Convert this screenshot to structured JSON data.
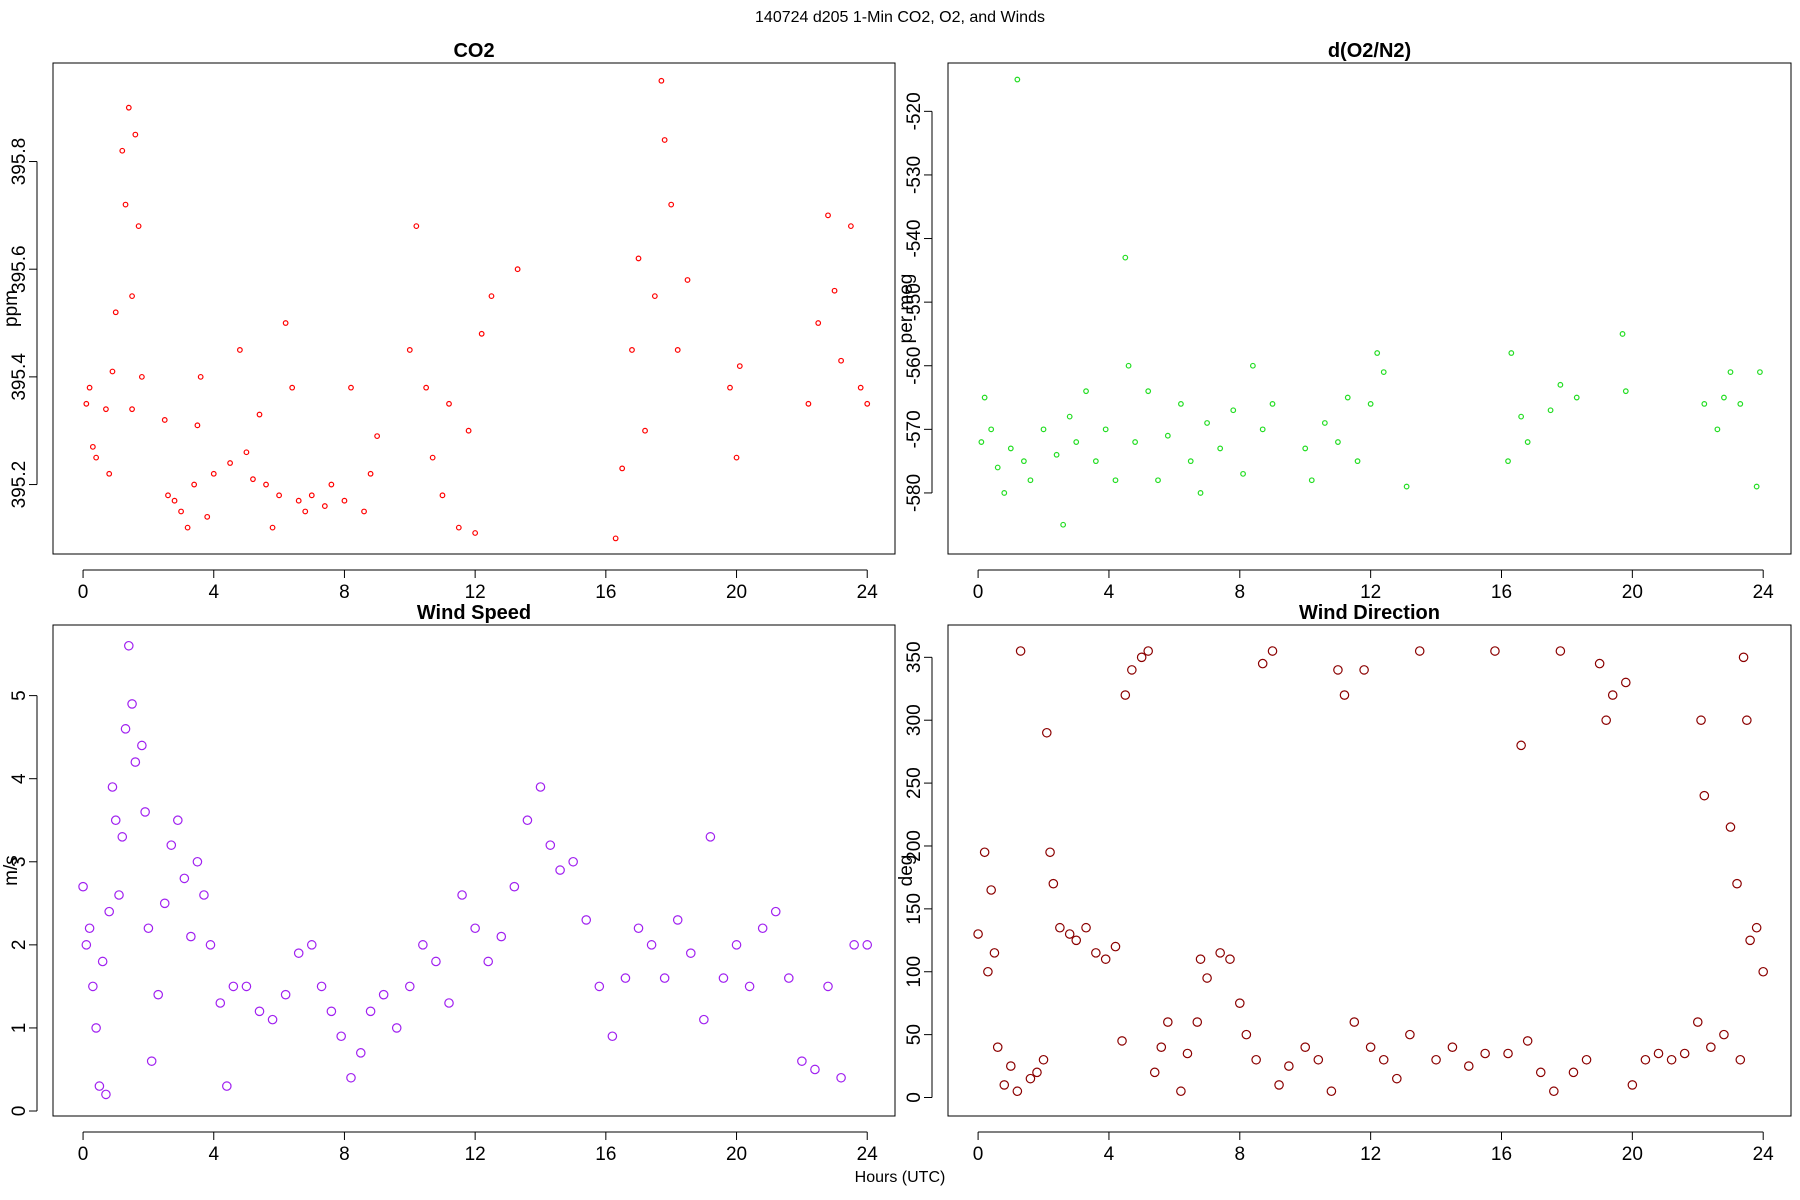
{
  "title": "140724   d205   1-Min CO2, O2, and Winds",
  "xlabel": "Hours (UTC)",
  "chart_data": [
    {
      "type": "scatter",
      "title": "CO2",
      "ylabel": "ppm",
      "color": "#ff0000",
      "x": [
        0.1,
        0.2,
        0.3,
        0.4,
        0.7,
        0.8,
        0.9,
        1.0,
        1.2,
        1.3,
        1.4,
        1.5,
        1.6,
        1.7,
        1.8,
        1.5,
        2.5,
        2.6,
        2.8,
        3.0,
        3.2,
        3.4,
        3.5,
        3.6,
        3.8,
        4.0,
        4.5,
        4.8,
        5.0,
        5.2,
        5.4,
        5.6,
        5.8,
        6.0,
        6.2,
        6.4,
        6.6,
        6.8,
        7.0,
        7.4,
        7.6,
        8.0,
        8.2,
        8.6,
        8.8,
        9.0,
        10.0,
        10.2,
        10.5,
        10.7,
        11.0,
        11.2,
        11.5,
        11.8,
        12.0,
        12.2,
        12.5,
        13.3,
        16.3,
        16.5,
        16.8,
        17.0,
        17.2,
        17.5,
        17.7,
        17.8,
        18.0,
        18.2,
        18.5,
        19.8,
        20.0,
        20.1,
        22.2,
        22.5,
        22.8,
        23.0,
        23.2,
        23.5,
        23.8,
        24.0
      ],
      "values": [
        395.35,
        395.38,
        395.27,
        395.25,
        395.34,
        395.22,
        395.41,
        395.52,
        395.82,
        395.72,
        395.9,
        395.55,
        395.85,
        395.68,
        395.4,
        395.34,
        395.32,
        395.18,
        395.17,
        395.15,
        395.12,
        395.2,
        395.31,
        395.4,
        395.14,
        395.22,
        395.24,
        395.45,
        395.26,
        395.21,
        395.33,
        395.2,
        395.12,
        395.18,
        395.5,
        395.38,
        395.17,
        395.15,
        395.18,
        395.16,
        395.2,
        395.17,
        395.38,
        395.15,
        395.22,
        395.29,
        395.45,
        395.68,
        395.38,
        395.25,
        395.18,
        395.35,
        395.12,
        395.3,
        395.11,
        395.48,
        395.55,
        395.6,
        395.1,
        395.23,
        395.45,
        395.62,
        395.3,
        395.55,
        395.95,
        395.84,
        395.72,
        395.45,
        395.58,
        395.38,
        395.25,
        395.42,
        395.35,
        395.5,
        395.7,
        395.56,
        395.43,
        395.68,
        395.38,
        395.35
      ],
      "xlim": [
        -0.92,
        24.85
      ],
      "ylim": [
        395.071,
        395.983
      ],
      "xticks": [
        0,
        4,
        8,
        12,
        16,
        20,
        24
      ],
      "yticks": [
        395.2,
        395.4,
        395.6,
        395.8
      ]
    },
    {
      "type": "scatter",
      "title": "d(O2/N2)",
      "ylabel": "per meg",
      "color": "#22dd22",
      "x": [
        0.1,
        0.2,
        0.4,
        0.6,
        0.8,
        1.0,
        1.2,
        1.4,
        1.6,
        2.0,
        2.4,
        2.6,
        2.8,
        3.0,
        3.3,
        3.6,
        3.9,
        4.2,
        4.5,
        4.6,
        4.8,
        5.2,
        5.5,
        5.8,
        6.2,
        6.5,
        6.8,
        7.0,
        7.4,
        7.8,
        8.1,
        8.4,
        8.7,
        9.0,
        10.0,
        10.2,
        10.6,
        11.0,
        11.3,
        11.6,
        12.0,
        12.2,
        12.4,
        13.1,
        16.2,
        16.3,
        16.6,
        16.8,
        17.5,
        17.8,
        18.3,
        19.7,
        19.8,
        22.2,
        22.6,
        22.8,
        23.0,
        23.3,
        23.8,
        23.9
      ],
      "values": [
        -572,
        -565,
        -570,
        -576,
        -580,
        -573,
        -515,
        -575,
        -578,
        -570,
        -574,
        -585,
        -568,
        -572,
        -564,
        -575,
        -570,
        -578,
        -543,
        -560,
        -572,
        -564,
        -578,
        -571,
        -566,
        -575,
        -580,
        -569,
        -573,
        -567,
        -577,
        -560,
        -570,
        -566,
        -573,
        -578,
        -569,
        -572,
        -565,
        -575,
        -566,
        -558,
        -561,
        -579,
        -575,
        -558,
        -568,
        -572,
        -567,
        -563,
        -565,
        -555,
        -564,
        -566,
        -570,
        -565,
        -561,
        -566,
        -579,
        -561
      ],
      "xlim": [
        -0.92,
        24.85
      ],
      "ylim": [
        -589.6,
        -512.4
      ],
      "xticks": [
        0,
        4,
        8,
        12,
        16,
        20,
        24
      ],
      "yticks": [
        -580,
        -570,
        -560,
        -550,
        -540,
        -530,
        -520
      ]
    },
    {
      "type": "scatter",
      "title": "Wind Speed",
      "ylabel": "m/s",
      "color": "#a020f0",
      "x": [
        0.0,
        0.1,
        0.2,
        0.3,
        0.4,
        0.5,
        0.6,
        0.7,
        0.8,
        0.9,
        1.0,
        1.1,
        1.2,
        1.3,
        1.4,
        1.5,
        1.6,
        1.8,
        1.9,
        2.0,
        2.1,
        2.3,
        2.5,
        2.7,
        2.9,
        3.1,
        3.3,
        3.5,
        3.7,
        3.9,
        4.2,
        4.4,
        4.6,
        5.0,
        5.4,
        5.8,
        6.2,
        6.6,
        7.0,
        7.3,
        7.6,
        7.9,
        8.2,
        8.5,
        8.8,
        9.2,
        9.6,
        10.0,
        10.4,
        10.8,
        11.2,
        11.6,
        12.0,
        12.4,
        12.8,
        13.2,
        13.6,
        14.0,
        14.3,
        14.6,
        15.0,
        15.4,
        15.8,
        16.2,
        16.6,
        17.0,
        17.4,
        17.8,
        18.2,
        18.6,
        19.0,
        19.2,
        19.6,
        20.0,
        20.4,
        20.8,
        21.2,
        21.6,
        22.0,
        22.4,
        22.8,
        23.2,
        23.6,
        24.0
      ],
      "values": [
        2.7,
        2.0,
        2.2,
        1.5,
        1.0,
        0.3,
        1.8,
        0.2,
        2.4,
        3.9,
        3.5,
        2.6,
        3.3,
        4.6,
        5.6,
        4.9,
        4.2,
        4.4,
        3.6,
        2.2,
        0.6,
        1.4,
        2.5,
        3.2,
        3.5,
        2.8,
        2.1,
        3.0,
        2.6,
        2.0,
        1.3,
        0.3,
        1.5,
        1.5,
        1.2,
        1.1,
        1.4,
        1.9,
        2.0,
        1.5,
        1.2,
        0.9,
        0.4,
        0.7,
        1.2,
        1.4,
        1.0,
        1.5,
        2.0,
        1.8,
        1.3,
        2.6,
        2.2,
        1.8,
        2.1,
        2.7,
        3.5,
        3.9,
        3.2,
        2.9,
        3.0,
        2.3,
        1.5,
        0.9,
        1.6,
        2.2,
        2.0,
        1.6,
        2.3,
        1.9,
        1.1,
        3.3,
        1.6,
        2.0,
        1.5,
        2.2,
        2.4,
        1.6,
        0.6,
        0.5,
        1.5,
        0.4,
        2.0,
        2.0
      ],
      "xlim": [
        -0.92,
        24.85
      ],
      "ylim": [
        -0.06,
        5.85
      ],
      "xticks": [
        0,
        4,
        8,
        12,
        16,
        20,
        24
      ],
      "yticks": [
        0,
        1,
        2,
        3,
        4,
        5
      ]
    },
    {
      "type": "scatter",
      "title": "Wind Direction",
      "ylabel": "deg",
      "color": "#8b0000",
      "x": [
        0.0,
        0.2,
        0.3,
        0.4,
        0.5,
        0.6,
        0.8,
        1.0,
        1.2,
        1.3,
        1.6,
        1.8,
        2.0,
        2.1,
        2.2,
        2.3,
        2.5,
        2.8,
        3.0,
        3.3,
        3.6,
        3.9,
        4.2,
        4.4,
        4.5,
        4.7,
        5.0,
        5.2,
        5.4,
        5.6,
        5.8,
        6.2,
        6.4,
        6.7,
        6.8,
        7.0,
        7.4,
        7.7,
        8.0,
        8.2,
        8.5,
        8.7,
        9.0,
        9.2,
        9.5,
        10.0,
        10.4,
        10.8,
        11.0,
        11.2,
        11.5,
        11.8,
        12.0,
        12.4,
        12.8,
        13.2,
        13.5,
        14.0,
        14.5,
        15.0,
        15.5,
        15.8,
        16.2,
        16.6,
        16.8,
        17.2,
        17.6,
        17.8,
        18.2,
        18.6,
        19.0,
        19.2,
        19.4,
        19.8,
        20.0,
        20.4,
        20.8,
        21.2,
        21.6,
        22.0,
        22.1,
        22.2,
        22.4,
        22.8,
        23.0,
        23.2,
        23.3,
        23.4,
        23.5,
        23.6,
        23.8,
        24.0
      ],
      "values": [
        130,
        195,
        100,
        165,
        115,
        40,
        10,
        25,
        5,
        355,
        15,
        20,
        30,
        290,
        195,
        170,
        135,
        130,
        125,
        135,
        115,
        110,
        120,
        45,
        320,
        340,
        350,
        355,
        20,
        40,
        60,
        5,
        35,
        60,
        110,
        95,
        115,
        110,
        75,
        50,
        30,
        345,
        355,
        10,
        25,
        40,
        30,
        5,
        340,
        320,
        60,
        340,
        40,
        30,
        15,
        50,
        355,
        30,
        40,
        25,
        35,
        355,
        35,
        280,
        45,
        20,
        5,
        355,
        20,
        30,
        345,
        300,
        320,
        330,
        10,
        30,
        35,
        30,
        35,
        60,
        300,
        240,
        40,
        50,
        215,
        170,
        30,
        350,
        300,
        125,
        135,
        100
      ],
      "xlim": [
        -0.92,
        24.85
      ],
      "ylim": [
        -14.7,
        375.7
      ],
      "xticks": [
        0,
        4,
        8,
        12,
        16,
        20,
        24
      ],
      "yticks": [
        0,
        50,
        100,
        150,
        200,
        250,
        300,
        350
      ]
    }
  ]
}
